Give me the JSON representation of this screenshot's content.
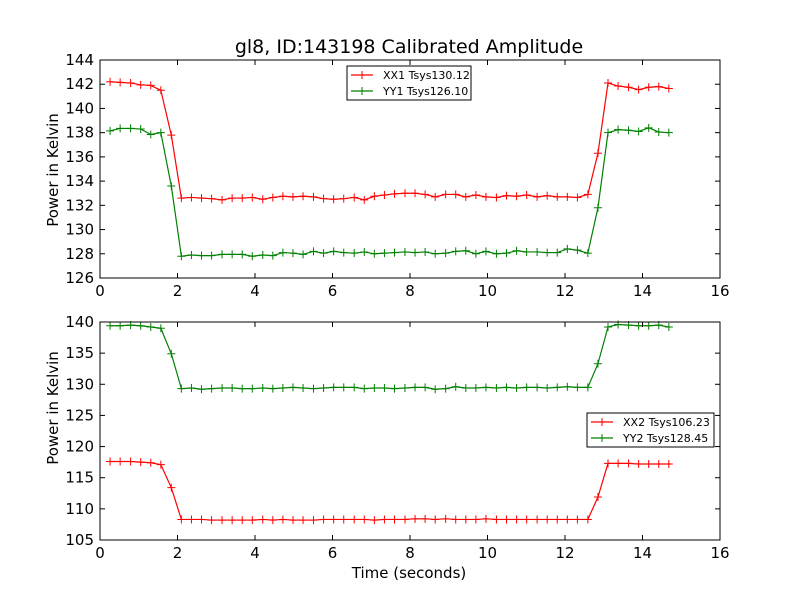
{
  "chart_data": [
    {
      "type": "line",
      "title": "gl8, ID:143198 Calibrated Amplitude",
      "xlabel": "",
      "ylabel": "Power in Kelvin",
      "xlim": [
        0,
        16
      ],
      "ylim": [
        126,
        144
      ],
      "xticks": [
        0,
        2,
        4,
        6,
        8,
        10,
        12,
        14,
        16
      ],
      "yticks": [
        126,
        128,
        130,
        132,
        134,
        136,
        138,
        140,
        142,
        144
      ],
      "legend_position": "top-center",
      "x": [
        0.26,
        0.52,
        0.79,
        1.05,
        1.31,
        1.57,
        1.84,
        2.1,
        2.36,
        2.62,
        2.88,
        3.15,
        3.41,
        3.67,
        3.93,
        4.2,
        4.46,
        4.72,
        4.98,
        5.24,
        5.51,
        5.77,
        6.03,
        6.29,
        6.56,
        6.82,
        7.08,
        7.34,
        7.6,
        7.87,
        8.13,
        8.39,
        8.65,
        8.92,
        9.18,
        9.44,
        9.7,
        9.96,
        10.23,
        10.49,
        10.75,
        11.01,
        11.28,
        11.54,
        11.8,
        12.06,
        12.32,
        12.59,
        12.85,
        13.11,
        13.37,
        13.64,
        13.9,
        14.16,
        14.42,
        14.68
      ],
      "series": [
        {
          "name": "XX1 Tsys130.12",
          "color": "#ff0000",
          "values": [
            142.2,
            142.15,
            142.1,
            141.95,
            141.9,
            141.5,
            137.8,
            132.6,
            132.65,
            132.6,
            132.55,
            132.45,
            132.6,
            132.6,
            132.65,
            132.5,
            132.65,
            132.75,
            132.7,
            132.75,
            132.7,
            132.55,
            132.5,
            132.55,
            132.65,
            132.45,
            132.75,
            132.85,
            132.95,
            133.0,
            133.0,
            132.9,
            132.7,
            132.9,
            132.9,
            132.7,
            132.85,
            132.7,
            132.65,
            132.8,
            132.75,
            132.85,
            132.7,
            132.8,
            132.7,
            132.7,
            132.65,
            132.9,
            136.3,
            142.1,
            141.85,
            141.75,
            141.55,
            141.75,
            141.8,
            141.65
          ]
        },
        {
          "name": "YY1 Tsys126.10",
          "color": "#008000",
          "values": [
            138.15,
            138.35,
            138.35,
            138.3,
            137.85,
            138.0,
            133.6,
            127.8,
            127.9,
            127.85,
            127.85,
            127.95,
            127.95,
            127.95,
            127.8,
            127.9,
            127.85,
            128.1,
            128.05,
            127.95,
            128.2,
            128.05,
            128.2,
            128.1,
            128.05,
            128.15,
            128.0,
            128.05,
            128.1,
            128.15,
            128.1,
            128.15,
            128.0,
            128.05,
            128.2,
            128.25,
            128.0,
            128.2,
            128.0,
            128.05,
            128.25,
            128.15,
            128.15,
            128.1,
            128.1,
            128.4,
            128.3,
            128.05,
            131.8,
            138.0,
            138.25,
            138.2,
            138.1,
            138.4,
            138.05,
            138.0
          ]
        }
      ]
    },
    {
      "type": "line",
      "title": "",
      "xlabel": "Time (seconds)",
      "ylabel": "Power in Kelvin",
      "xlim": [
        0,
        16
      ],
      "ylim": [
        105,
        140
      ],
      "xticks": [
        0,
        2,
        4,
        6,
        8,
        10,
        12,
        14,
        16
      ],
      "yticks": [
        105,
        110,
        115,
        120,
        125,
        130,
        135,
        140
      ],
      "legend_position": "center-right",
      "x": [
        0.26,
        0.52,
        0.79,
        1.05,
        1.31,
        1.57,
        1.84,
        2.1,
        2.36,
        2.62,
        2.88,
        3.15,
        3.41,
        3.67,
        3.93,
        4.2,
        4.46,
        4.72,
        4.98,
        5.24,
        5.51,
        5.77,
        6.03,
        6.29,
        6.56,
        6.82,
        7.08,
        7.34,
        7.6,
        7.87,
        8.13,
        8.39,
        8.65,
        8.92,
        9.18,
        9.44,
        9.7,
        9.96,
        10.23,
        10.49,
        10.75,
        11.01,
        11.28,
        11.54,
        11.8,
        12.06,
        12.32,
        12.59,
        12.85,
        13.11,
        13.37,
        13.64,
        13.9,
        14.16,
        14.42,
        14.68
      ],
      "series": [
        {
          "name": "XX2 Tsys106.23",
          "color": "#ff0000",
          "values": [
            117.6,
            117.6,
            117.6,
            117.5,
            117.4,
            117.1,
            113.4,
            108.3,
            108.3,
            108.3,
            108.2,
            108.2,
            108.2,
            108.2,
            108.2,
            108.3,
            108.2,
            108.3,
            108.2,
            108.2,
            108.2,
            108.3,
            108.3,
            108.3,
            108.3,
            108.3,
            108.2,
            108.3,
            108.3,
            108.3,
            108.4,
            108.4,
            108.3,
            108.4,
            108.3,
            108.3,
            108.3,
            108.4,
            108.3,
            108.3,
            108.3,
            108.3,
            108.3,
            108.3,
            108.3,
            108.3,
            108.3,
            108.3,
            111.9,
            117.3,
            117.3,
            117.3,
            117.2,
            117.2,
            117.2,
            117.2
          ]
        },
        {
          "name": "YY2 Tsys128.45",
          "color": "#008000",
          "values": [
            139.4,
            139.4,
            139.5,
            139.4,
            139.2,
            139.0,
            134.9,
            129.3,
            129.4,
            129.2,
            129.3,
            129.4,
            129.4,
            129.3,
            129.3,
            129.4,
            129.3,
            129.4,
            129.5,
            129.4,
            129.3,
            129.4,
            129.5,
            129.5,
            129.5,
            129.3,
            129.4,
            129.4,
            129.3,
            129.4,
            129.5,
            129.5,
            129.2,
            129.3,
            129.6,
            129.4,
            129.4,
            129.5,
            129.4,
            129.5,
            129.4,
            129.5,
            129.5,
            129.4,
            129.5,
            129.6,
            129.5,
            129.5,
            133.3,
            139.2,
            139.6,
            139.5,
            139.4,
            139.4,
            139.5,
            139.2
          ]
        }
      ]
    }
  ]
}
